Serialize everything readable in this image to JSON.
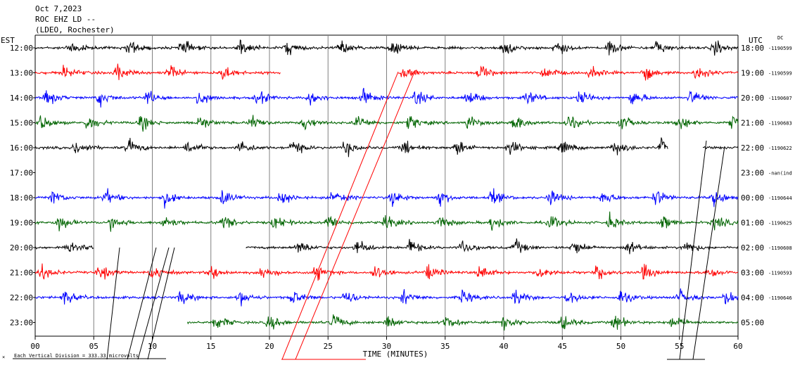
{
  "header": {
    "date": "Oct 7,2023",
    "station": "ROC EHZ LD --",
    "network": "(LDEO, Rochester)"
  },
  "labels": {
    "left_tz": "EST",
    "right_tz": "UTC",
    "dc": "DC",
    "xlabel": "TIME (MINUTES)",
    "scale_note": "Each Vertical Division = 333.33 microvolts",
    "corner_mark": "×"
  },
  "colors": {
    "black": "#000000",
    "red": "#ff0000",
    "blue": "#0000ff",
    "green": "#006400",
    "grid": "#808080"
  },
  "chart_data": {
    "type": "line",
    "title": "Oct 7,2023",
    "xlabel": "TIME (MINUTES)",
    "ylabel": "",
    "xlim": [
      0,
      60
    ],
    "x_ticks": [
      "00",
      "05",
      "10",
      "15",
      "20",
      "25",
      "30",
      "35",
      "40",
      "45",
      "50",
      "55",
      "60"
    ],
    "grid": true,
    "rows": [
      {
        "est": "12:00",
        "utc": "18:00",
        "dc": "-1190599",
        "color": "black",
        "data_span": [
          0,
          60
        ],
        "events": [
          3,
          8,
          12.5,
          17.5,
          21.5,
          26,
          30.5,
          40,
          44.5,
          49,
          53,
          58
        ]
      },
      {
        "est": "13:00",
        "utc": "19:00",
        "dc": "-1190599",
        "color": "red",
        "data_span": [
          0,
          21
        ],
        "data_span2": [
          31,
          60
        ],
        "events": [
          2.5,
          7,
          11.5,
          16,
          31.5,
          38,
          43.5,
          47.5,
          52,
          56.5
        ]
      },
      {
        "est": "14:00",
        "utc": "20:00",
        "dc": "-1190607",
        "color": "blue",
        "data_span": [
          0,
          60
        ],
        "events": [
          1,
          5.5,
          9.5,
          14,
          19,
          23.5,
          28,
          32.5,
          37,
          42,
          46.5,
          51,
          56
        ]
      },
      {
        "est": "15:00",
        "utc": "21:00",
        "dc": "-1190683",
        "color": "green",
        "data_span": [
          0,
          60
        ],
        "events": [
          0.5,
          4.5,
          9,
          14,
          18.5,
          23,
          27.5,
          32,
          37,
          41,
          45.5,
          50,
          55,
          59.5
        ]
      },
      {
        "est": "16:00",
        "utc": "22:00",
        "dc": "-1190622",
        "color": "black",
        "data_span": [
          0,
          54
        ],
        "data_span2": [
          57,
          60
        ],
        "events": [
          3.5,
          8,
          13,
          17.5,
          22,
          26.5,
          31.5,
          36,
          40.5,
          45,
          49.5,
          53.5
        ]
      },
      {
        "est": "17:00",
        "utc": "23:00",
        "dc": "-nan(ind",
        "color": "none",
        "data_span": [
          0,
          0
        ],
        "events": []
      },
      {
        "est": "18:00",
        "utc": "00:00",
        "dc": "-1190644",
        "color": "blue",
        "data_span": [
          0,
          60
        ],
        "events": [
          1.5,
          6,
          11,
          16,
          21,
          25.5,
          30.5,
          34.5,
          39,
          44,
          48.5,
          53,
          58
        ]
      },
      {
        "est": "19:00",
        "utc": "01:00",
        "dc": "-1190625",
        "color": "green",
        "data_span": [
          0,
          60
        ],
        "events": [
          2,
          6.5,
          11,
          16,
          20.5,
          25,
          30,
          34.5,
          39,
          44,
          49,
          53.5,
          58
        ]
      },
      {
        "est": "20:00",
        "utc": "02:00",
        "dc": "-1190608",
        "color": "black",
        "data_span": [
          0,
          5
        ],
        "data_span2": [
          18,
          60
        ],
        "events": [
          3,
          22.5,
          27.5,
          32,
          36.5,
          41,
          46,
          50.5,
          55.5
        ]
      },
      {
        "est": "21:00",
        "utc": "03:00",
        "dc": "-1190593",
        "color": "red",
        "data_span": [
          0,
          60
        ],
        "events": [
          0.5,
          5.5,
          10,
          15,
          19.5,
          24,
          29,
          33.5,
          38,
          43,
          48,
          52,
          57.5
        ]
      },
      {
        "est": "22:00",
        "utc": "04:00",
        "dc": "-1190646",
        "color": "blue",
        "data_span": [
          0,
          60
        ],
        "events": [
          2.5,
          12.5,
          17.5,
          22,
          26.5,
          31.5,
          36.5,
          41,
          45.5,
          50,
          55,
          59
        ]
      },
      {
        "est": "23:00",
        "utc": "05:00",
        "dc": "",
        "color": "green",
        "data_span": [
          13,
          60
        ],
        "events": [
          15.5,
          20,
          25.5,
          30,
          35,
          40,
          45,
          49.5,
          54.5
        ]
      }
    ]
  }
}
